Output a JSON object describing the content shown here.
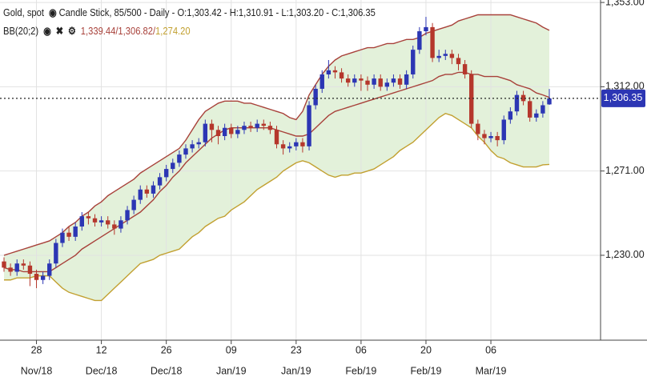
{
  "chart_data": {
    "type": "candlestick",
    "title": "Gold, spot",
    "subtitle": "Candle Stick, 85/500 - Daily - O:1,303.42 - H:1,310.91 - L:1,303.20 - C:1,306.35",
    "indicator": "BB(20;2)",
    "indicator_values": [
      "1,339.44/",
      "1,306.82/",
      "1,274.20"
    ],
    "up_color": "#2c36b4",
    "down_color": "#b5372c",
    "band_fill": "#e3f1da",
    "categories": [
      null,
      null,
      null,
      null,
      null,
      [
        "28",
        "Nov/18"
      ],
      null,
      null,
      null,
      null,
      null,
      null,
      null,
      null,
      null,
      [
        "12",
        "Dec/18"
      ],
      null,
      null,
      null,
      null,
      null,
      null,
      null,
      null,
      null,
      [
        "26",
        "Dec/18"
      ],
      null,
      null,
      null,
      null,
      null,
      null,
      null,
      null,
      null,
      [
        "09",
        "Jan/19"
      ],
      null,
      null,
      null,
      null,
      null,
      null,
      null,
      null,
      null,
      [
        "23",
        "Jan/19"
      ],
      null,
      null,
      null,
      null,
      null,
      null,
      null,
      null,
      null,
      [
        "06",
        "Feb/19"
      ],
      null,
      null,
      null,
      null,
      null,
      null,
      null,
      null,
      null,
      [
        "20",
        "Feb/19"
      ],
      null,
      null,
      null,
      null,
      null,
      null,
      null,
      null,
      null,
      [
        "06",
        "Mar/19"
      ],
      null,
      null,
      null,
      null,
      null,
      null,
      null,
      null,
      null
    ],
    "open": [
      1227,
      1224,
      1222,
      1226,
      1225,
      1221,
      1218,
      1220,
      1226,
      1236,
      1241,
      1239,
      1244,
      1249,
      1248,
      1246,
      1247,
      1245,
      1243,
      1247,
      1252,
      1257,
      1262,
      1260,
      1264,
      1268,
      1272,
      1275,
      1279,
      1282,
      1284,
      1285,
      1294,
      1291,
      1288,
      1292,
      1289,
      1291,
      1293,
      1292,
      1294,
      1293,
      1291,
      1284,
      1282,
      1283,
      1285,
      1283,
      1303,
      1311,
      1318,
      1320,
      1319,
      1316,
      1314,
      1316,
      1315,
      1313,
      1316,
      1312,
      1314,
      1316,
      1313,
      1318,
      1330,
      1339,
      1341,
      1326,
      1327,
      1328,
      1326,
      1323,
      1318,
      1294,
      1289,
      1287,
      1288,
      1286,
      1296,
      1300,
      1308,
      1305,
      1297,
      1299,
      1303.42
    ],
    "high": [
      1229,
      1226,
      1228,
      1228,
      1227,
      1223,
      1222,
      1228,
      1238,
      1243,
      1244,
      1246,
      1251,
      1251,
      1250,
      1249,
      1249,
      1247,
      1249,
      1254,
      1259,
      1264,
      1264,
      1266,
      1270,
      1274,
      1277,
      1281,
      1284,
      1286,
      1287,
      1296,
      1296,
      1293,
      1294,
      1294,
      1293,
      1295,
      1295,
      1296,
      1296,
      1295,
      1293,
      1286,
      1285,
      1287,
      1287,
      1305,
      1313,
      1320,
      1325,
      1322,
      1321,
      1318,
      1318,
      1318,
      1317,
      1318,
      1318,
      1316,
      1318,
      1318,
      1320,
      1332,
      1341,
      1346,
      1343,
      1330,
      1330,
      1330,
      1328,
      1325,
      1320,
      1296,
      1291,
      1290,
      1290,
      1298,
      1302,
      1310,
      1310,
      1307,
      1301,
      1305,
      1310.91
    ],
    "low": [
      1222,
      1220,
      1220,
      1223,
      1215,
      1214,
      1216,
      1218,
      1224,
      1234,
      1237,
      1237,
      1242,
      1245,
      1244,
      1244,
      1243,
      1240,
      1241,
      1245,
      1250,
      1255,
      1258,
      1258,
      1262,
      1266,
      1270,
      1273,
      1277,
      1280,
      1282,
      1283,
      1285,
      1284,
      1286,
      1287,
      1287,
      1289,
      1290,
      1290,
      1291,
      1289,
      1282,
      1279,
      1280,
      1281,
      1280,
      1281,
      1301,
      1309,
      1316,
      1316,
      1314,
      1312,
      1312,
      1310,
      1310,
      1311,
      1310,
      1310,
      1312,
      1311,
      1311,
      1316,
      1328,
      1337,
      1324,
      1324,
      1325,
      1323,
      1320,
      1316,
      1292,
      1286,
      1284,
      1285,
      1283,
      1284,
      1294,
      1298,
      1303,
      1295,
      1295,
      1297,
      1303.2
    ],
    "close": [
      1224,
      1222,
      1226,
      1225,
      1221,
      1218,
      1220,
      1226,
      1236,
      1241,
      1239,
      1244,
      1249,
      1248,
      1246,
      1247,
      1245,
      1243,
      1247,
      1252,
      1257,
      1262,
      1260,
      1264,
      1268,
      1272,
      1275,
      1279,
      1282,
      1284,
      1285,
      1294,
      1291,
      1288,
      1292,
      1289,
      1291,
      1293,
      1292,
      1294,
      1293,
      1291,
      1284,
      1282,
      1283,
      1285,
      1283,
      1303,
      1311,
      1318,
      1320,
      1319,
      1316,
      1314,
      1316,
      1315,
      1313,
      1316,
      1312,
      1314,
      1316,
      1313,
      1318,
      1330,
      1339,
      1341,
      1326,
      1327,
      1328,
      1326,
      1323,
      1318,
      1294,
      1289,
      1287,
      1288,
      1286,
      1296,
      1300,
      1308,
      1305,
      1297,
      1299,
      1303,
      1306.35
    ],
    "bands": [
      {
        "color": "#a8413a",
        "values": [
          1230,
          1231,
          1232,
          1233,
          1234,
          1235,
          1236,
          1237,
          1239,
          1241,
          1244,
          1246,
          1249,
          1251,
          1254,
          1256,
          1259,
          1261,
          1263,
          1265,
          1267,
          1270,
          1272,
          1274,
          1276,
          1278,
          1280,
          1282,
          1286,
          1291,
          1296,
          1300,
          1302,
          1304,
          1305,
          1305,
          1305,
          1304,
          1304,
          1303,
          1302,
          1301,
          1300,
          1299,
          1297,
          1296,
          1300,
          1308,
          1313,
          1318,
          1322,
          1325,
          1327,
          1328,
          1329,
          1330,
          1331,
          1331,
          1332,
          1333,
          1333,
          1334,
          1335,
          1335,
          1336,
          1338,
          1339,
          1340,
          1341,
          1342,
          1344,
          1345,
          1346,
          1347,
          1347,
          1347,
          1347,
          1347,
          1347,
          1346,
          1345,
          1344,
          1343,
          1341,
          1339.44
        ]
      },
      {
        "color": "#a8413a",
        "values": [
          1224,
          1223,
          1223,
          1222,
          1222,
          1222,
          1222,
          1222,
          1224,
          1226,
          1228,
          1230,
          1233,
          1235,
          1237,
          1239,
          1241,
          1243,
          1245,
          1247,
          1249,
          1251,
          1254,
          1257,
          1261,
          1264,
          1268,
          1271,
          1275,
          1278,
          1281,
          1284,
          1287,
          1289,
          1291,
          1292,
          1292,
          1292,
          1292,
          1292,
          1292,
          1292,
          1291,
          1290,
          1289,
          1288,
          1288,
          1289,
          1292,
          1295,
          1298,
          1300,
          1301,
          1302,
          1303,
          1304,
          1305,
          1306,
          1307,
          1308,
          1309,
          1310,
          1311,
          1312,
          1313,
          1314,
          1315,
          1317,
          1318,
          1318,
          1319,
          1319,
          1318,
          1318,
          1317,
          1317,
          1317,
          1316,
          1315,
          1313,
          1312,
          1311,
          1309,
          1308,
          1306.82
        ]
      },
      {
        "color": "#c2a030",
        "values": [
          1218,
          1218,
          1219,
          1219,
          1219,
          1220,
          1220,
          1220,
          1217,
          1214,
          1212,
          1211,
          1210,
          1209,
          1208,
          1208,
          1211,
          1214,
          1217,
          1220,
          1223,
          1226,
          1227,
          1228,
          1230,
          1231,
          1232,
          1233,
          1236,
          1239,
          1241,
          1244,
          1246,
          1248,
          1249,
          1252,
          1254,
          1256,
          1259,
          1262,
          1264,
          1266,
          1268,
          1271,
          1273,
          1275,
          1276,
          1275,
          1273,
          1271,
          1269,
          1268,
          1269,
          1269,
          1270,
          1270,
          1271,
          1272,
          1274,
          1276,
          1278,
          1281,
          1283,
          1285,
          1288,
          1291,
          1294,
          1297,
          1299,
          1298,
          1296,
          1294,
          1292,
          1288,
          1285,
          1281,
          1278,
          1277,
          1275,
          1274,
          1273,
          1273,
          1273,
          1274,
          1274.2
        ]
      }
    ],
    "last_price": {
      "value": 1306.35,
      "label": "1,306.35"
    },
    "last_price_color": "#2c36b4",
    "ylim": [
      1188.7,
      1354.2
    ],
    "yticks": [
      {
        "value": 1353,
        "label": "1,353.00"
      },
      {
        "value": 1312,
        "label": "1,312.00"
      },
      {
        "value": 1271,
        "label": "1,271.00"
      },
      {
        "value": 1230,
        "label": "1,230.00"
      }
    ],
    "grid": true
  }
}
